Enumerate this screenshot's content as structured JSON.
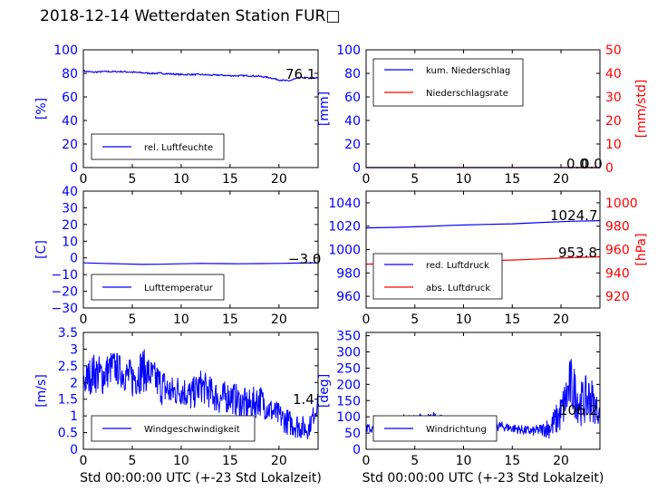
{
  "title": "2018-12-14 Wetterdaten Station FUR□",
  "chart_data": [
    {
      "type": "line",
      "id": "humidity",
      "xlim": [
        0,
        24
      ],
      "ylim": [
        0,
        100
      ],
      "xticks": [
        0,
        5,
        10,
        15,
        20
      ],
      "yticks": [
        0,
        20,
        40,
        60,
        80,
        100
      ],
      "ylabel": "[%]",
      "series": [
        {
          "name": "rel. Luftfeuchte",
          "color": "#0000ff",
          "x": [
            0,
            1,
            2,
            3,
            4,
            5,
            6,
            7,
            8,
            9,
            10,
            11,
            12,
            13,
            14,
            15,
            16,
            17,
            18,
            19,
            20,
            20.5,
            21,
            21.5,
            22,
            22.5,
            23,
            23.5,
            24
          ],
          "y": [
            82,
            81,
            81.5,
            81.5,
            81.5,
            81,
            80.5,
            80,
            80,
            79.5,
            79,
            79,
            79,
            78.5,
            78.5,
            78,
            78,
            78,
            77.5,
            76.5,
            74.5,
            74,
            73.5,
            75,
            76,
            76.5,
            76,
            76,
            76.1
          ]
        }
      ],
      "last_label": "76.1",
      "legend_loc": "lower-left"
    },
    {
      "type": "line",
      "id": "precip",
      "xlim": [
        0,
        24
      ],
      "ylim": [
        0,
        100
      ],
      "ylim_right": [
        0,
        50
      ],
      "xticks": [
        0,
        5,
        10,
        15,
        20
      ],
      "yticks": [
        0,
        20,
        40,
        60,
        80,
        100
      ],
      "yticks_right": [
        0,
        10,
        20,
        30,
        40,
        50
      ],
      "ylabel": "[mm]",
      "ylabel_right": "[mm/std]",
      "series": [
        {
          "name": "kum. Niederschlag",
          "color": "#0000ff",
          "x": [
            0,
            24
          ],
          "y": [
            0,
            0
          ]
        },
        {
          "name": "Niederschlagsrate",
          "color": "#ff0000",
          "axis": "right",
          "x": [
            0,
            24
          ],
          "y": [
            0,
            0
          ]
        }
      ],
      "last_label": "0.0",
      "last_label_right": "0.0",
      "legend_loc": "upper-left"
    },
    {
      "type": "line",
      "id": "temperature",
      "xlim": [
        0,
        24
      ],
      "ylim": [
        -30,
        40
      ],
      "xticks": [
        0,
        5,
        10,
        15,
        20
      ],
      "yticks": [
        -30,
        -20,
        -10,
        0,
        10,
        20,
        30,
        40
      ],
      "ylabel": "[C]",
      "series": [
        {
          "name": "Lufttemperatur",
          "color": "#0000ff",
          "x": [
            0,
            2,
            4,
            6,
            8,
            10,
            12,
            14,
            16,
            18,
            20,
            22,
            24
          ],
          "y": [
            -3.0,
            -3.3,
            -3.6,
            -3.9,
            -3.8,
            -3.5,
            -3.3,
            -3.4,
            -3.5,
            -3.4,
            -3.3,
            -3.1,
            -3.0
          ]
        }
      ],
      "last_label": "-3.0",
      "legend_loc": "lower-left"
    },
    {
      "type": "line",
      "id": "pressure",
      "xlim": [
        0,
        24
      ],
      "ylim": [
        950,
        1050
      ],
      "ylim_right": [
        910,
        1010
      ],
      "xticks": [
        0,
        5,
        10,
        15,
        20
      ],
      "yticks": [
        960,
        980,
        1000,
        1020,
        1040
      ],
      "yticks_right": [
        920,
        940,
        960,
        980,
        1000
      ],
      "ylabel_right": "[hPa]",
      "series": [
        {
          "name": "red. Luftdruck",
          "color": "#0000ff",
          "x": [
            0,
            3,
            6,
            9,
            12,
            15,
            18,
            21,
            24
          ],
          "y": [
            1018.5,
            1019,
            1019.8,
            1020.8,
            1021.5,
            1022,
            1023.2,
            1024.2,
            1024.7
          ]
        },
        {
          "name": "abs. Luftdruck",
          "color": "#ff0000",
          "axis": "right",
          "x": [
            0,
            3,
            6,
            9,
            12,
            15,
            18,
            21,
            24
          ],
          "y": [
            947.5,
            948,
            948.5,
            949.5,
            950.5,
            951,
            952,
            953,
            953.8
          ]
        }
      ],
      "last_label": "1024.7",
      "last_label_right": "953.8",
      "legend_loc": "lower-left"
    },
    {
      "type": "line",
      "id": "windspeed",
      "xlim": [
        0,
        24
      ],
      "ylim": [
        0,
        3.5
      ],
      "xticks": [
        0,
        5,
        10,
        15,
        20
      ],
      "yticks": [
        0,
        0.5,
        1.0,
        1.5,
        2.0,
        2.5,
        3.0,
        3.5
      ],
      "ylabel": "[m/s]",
      "xlabel": "Std 00:00:00 UTC (+-23 Std Lokalzeit)",
      "series": [
        {
          "name": "Windgeschwindigkeit",
          "color": "#0000ff",
          "x": [
            0,
            1,
            2,
            3,
            4,
            5,
            6,
            7,
            8,
            9,
            10,
            11,
            12,
            13,
            14,
            15,
            16,
            17,
            18,
            19,
            20,
            21,
            22,
            23,
            24
          ],
          "y": [
            2.0,
            2.3,
            2.2,
            2.5,
            2.3,
            2.1,
            2.4,
            2.2,
            1.9,
            1.7,
            1.8,
            1.6,
            1.9,
            1.7,
            1.5,
            1.6,
            1.4,
            1.3,
            1.5,
            1.2,
            1.0,
            0.8,
            0.7,
            0.6,
            1.4
          ],
          "spread": [
            0.5,
            0.6,
            0.6,
            0.5,
            0.5,
            0.6,
            0.7,
            0.5,
            0.6,
            0.5,
            0.5,
            0.5,
            0.5,
            0.5,
            0.5,
            0.5,
            0.5,
            0.5,
            0.5,
            0.4,
            0.4,
            0.4,
            0.4,
            0.3,
            0.3
          ]
        }
      ],
      "last_label": "1.4",
      "legend_loc": "lower-left"
    },
    {
      "type": "line",
      "id": "winddir",
      "xlim": [
        0,
        24
      ],
      "ylim": [
        0,
        360
      ],
      "xticks": [
        0,
        5,
        10,
        15,
        20
      ],
      "yticks": [
        0,
        50,
        100,
        150,
        200,
        250,
        300,
        350
      ],
      "ylabel": "[deg]",
      "xlabel": "Std 00:00:00 UTC (+-23 Std Lokalzeit)",
      "series": [
        {
          "name": "Windrichtung",
          "color": "#0000ff",
          "x": [
            0,
            1,
            2,
            3,
            4,
            5,
            6,
            7,
            8,
            9,
            10,
            11,
            12,
            13,
            14,
            15,
            16,
            17,
            18,
            19,
            20,
            21,
            22,
            23,
            24
          ],
          "y": [
            65,
            60,
            68,
            75,
            85,
            88,
            90,
            92,
            85,
            80,
            82,
            78,
            80,
            75,
            70,
            65,
            60,
            55,
            60,
            70,
            110,
            200,
            140,
            160,
            106.2
          ],
          "spread": [
            15,
            15,
            20,
            25,
            25,
            20,
            20,
            25,
            20,
            20,
            20,
            20,
            20,
            20,
            15,
            15,
            15,
            15,
            20,
            40,
            60,
            90,
            70,
            80,
            30
          ]
        }
      ],
      "last_label": "106.2",
      "legend_loc": "lower-left"
    }
  ]
}
